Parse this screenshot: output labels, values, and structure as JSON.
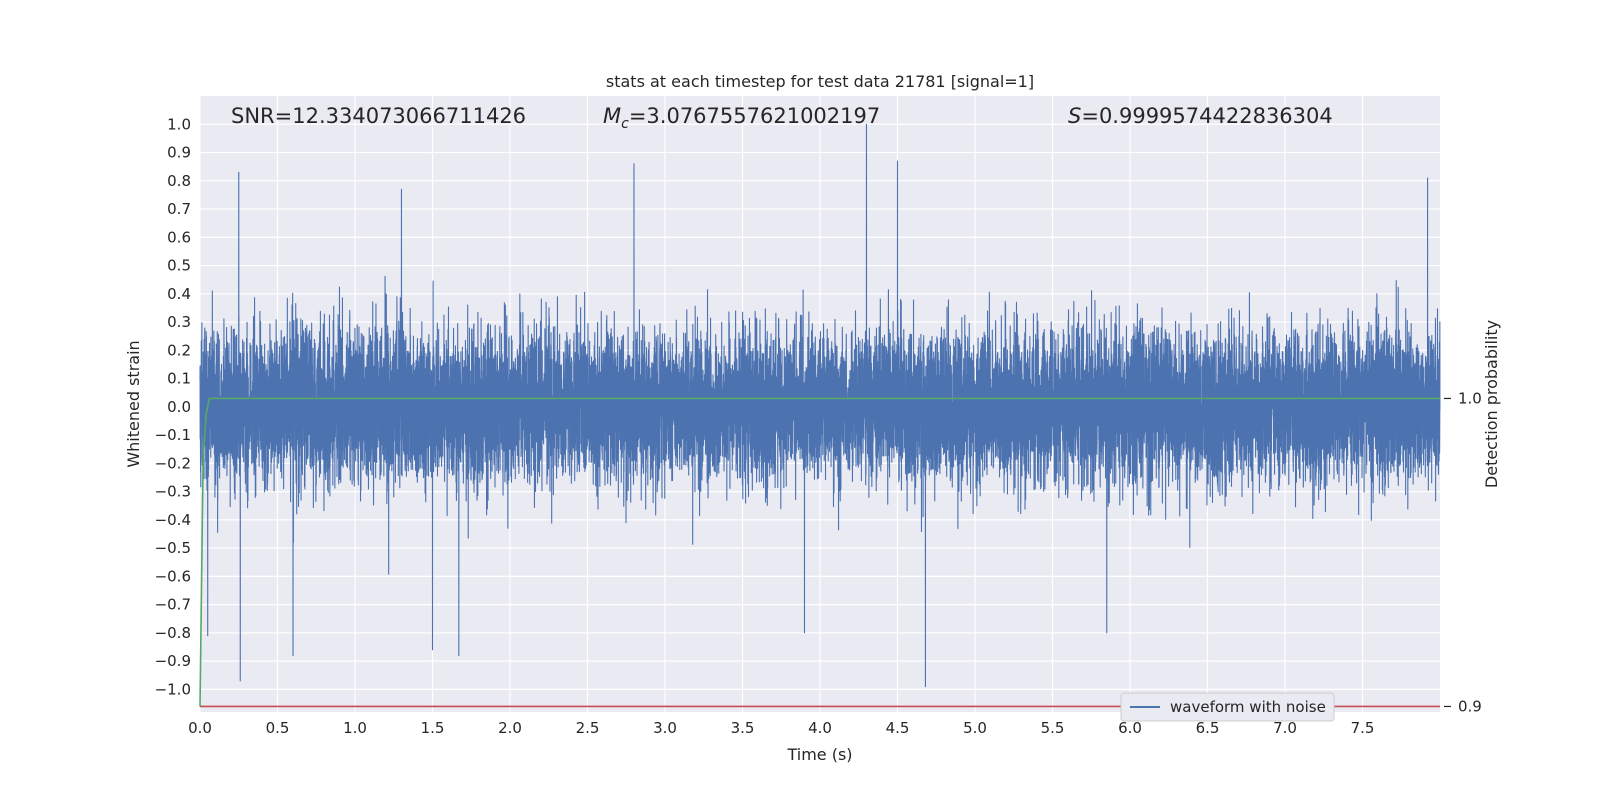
{
  "chart_data": {
    "type": "line",
    "title": "stats at each timestep for test data 21781 [signal=1]",
    "xlabel": "Time (s)",
    "ylabel": "Whitened strain",
    "ylabel_right": "Detection probability",
    "xlim": [
      0,
      8
    ],
    "ylim": [
      -1.08,
      1.1
    ],
    "ylim_right": [
      0.8982,
      1.0982
    ],
    "x_ticks": [
      "0.0",
      "0.5",
      "1.0",
      "1.5",
      "2.0",
      "2.5",
      "3.0",
      "3.5",
      "4.0",
      "4.5",
      "5.0",
      "5.5",
      "6.0",
      "6.5",
      "7.0",
      "7.5"
    ],
    "y_ticks": [
      "1.0",
      "0.9",
      "0.8",
      "0.7",
      "0.6",
      "0.5",
      "0.4",
      "0.3",
      "0.2",
      "0.1",
      "0.0",
      "−0.1",
      "−0.2",
      "−0.3",
      "−0.4",
      "−0.5",
      "−0.6",
      "−0.7",
      "−0.8",
      "−0.9",
      "−1.0"
    ],
    "y_ticks_right": [
      "1.0",
      "0.9"
    ],
    "grid": true,
    "legend_position": "lower-right",
    "annotations": {
      "snr": "SNR=12.334073066711426",
      "mc_symbol": "M",
      "mc_sub": "c",
      "mc_value": "=3.0767557621002197",
      "s_symbol": "S",
      "s_value": "=0.9999574422836304"
    },
    "series": [
      {
        "name": "waveform with noise",
        "axis": "left",
        "color": "#4c72b0",
        "description_note": "dense noisy signal, typical amplitude ±0.3, peaks",
        "sample_rate": 2048,
        "peaks": [
          {
            "x": 0.05,
            "y": -0.81
          },
          {
            "x": 0.25,
            "y": 0.83
          },
          {
            "x": 0.26,
            "y": -0.97
          },
          {
            "x": 0.6,
            "y": -0.88
          },
          {
            "x": 1.3,
            "y": 0.77
          },
          {
            "x": 1.5,
            "y": -0.86
          },
          {
            "x": 1.67,
            "y": -0.88
          },
          {
            "x": 2.8,
            "y": 0.86
          },
          {
            "x": 3.9,
            "y": -0.8
          },
          {
            "x": 4.3,
            "y": 1.0
          },
          {
            "x": 4.5,
            "y": 0.87
          },
          {
            "x": 4.68,
            "y": -0.99
          },
          {
            "x": 5.85,
            "y": -0.8
          },
          {
            "x": 7.92,
            "y": 0.81
          }
        ]
      },
      {
        "name": "",
        "axis": "right",
        "color": "#55a868",
        "x": [
          0.0,
          0.02,
          0.04,
          0.06,
          0.1,
          8.0
        ],
        "y": [
          0.9,
          0.98,
          0.995,
          1.0,
          1.0,
          1.0
        ]
      },
      {
        "name": "",
        "axis": "right",
        "color": "#c44e52",
        "x": [
          0.0,
          8.0
        ],
        "y": [
          0.9,
          0.9
        ]
      }
    ]
  }
}
